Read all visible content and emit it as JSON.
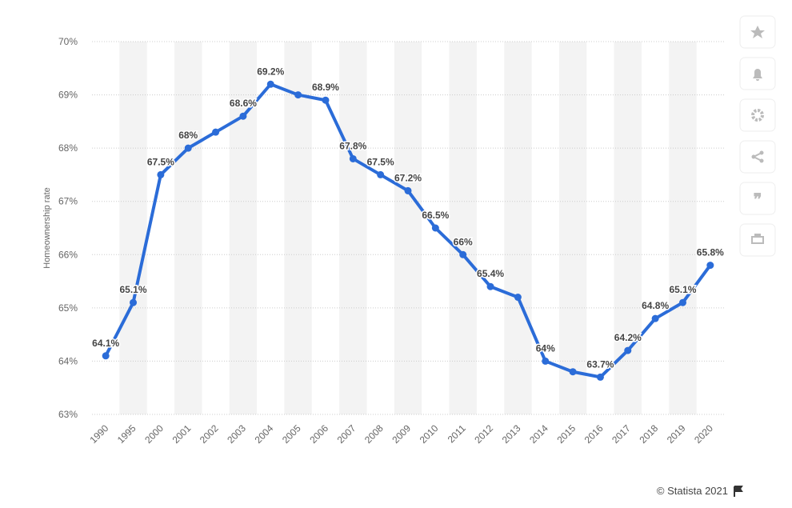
{
  "chart_data": {
    "type": "line",
    "y_label": "Homeownership rate",
    "categories": [
      "1990",
      "1995",
      "2000",
      "2001",
      "2002",
      "2003",
      "2004",
      "2005",
      "2006",
      "2007",
      "2008",
      "2009",
      "2010",
      "2011",
      "2012",
      "2013",
      "2014",
      "2015",
      "2016",
      "2017",
      "2018",
      "2019",
      "2020"
    ],
    "values": [
      64.1,
      65.1,
      67.5,
      68,
      68.3,
      68.6,
      69.2,
      69,
      68.9,
      67.8,
      67.5,
      67.2,
      66.5,
      66,
      65.4,
      65.2,
      64,
      63.8,
      63.7,
      64.2,
      64.8,
      65.1,
      65.8
    ],
    "value_labels": [
      "64.1%",
      "65.1%",
      "67.5%",
      "68%",
      null,
      "68.6%",
      "69.2%",
      null,
      "68.9%",
      "67.8%",
      "67.5%",
      "67.2%",
      "66.5%",
      "66%",
      "65.4%",
      null,
      "64%",
      null,
      "63.7%",
      "64.2%",
      "64.8%",
      "65.1%",
      "65.8%"
    ],
    "color": "#2b6cd8",
    "ylim": [
      63,
      70
    ],
    "yticks": [
      {
        "value": 63,
        "label": "63%"
      },
      {
        "value": 64,
        "label": "64%"
      },
      {
        "value": 65,
        "label": "65%"
      },
      {
        "value": 66,
        "label": "66%"
      },
      {
        "value": 67,
        "label": "67%"
      },
      {
        "value": 68,
        "label": "68%"
      },
      {
        "value": 69,
        "label": "69%"
      },
      {
        "value": 70,
        "label": "70%"
      }
    ],
    "grid": true,
    "source": "© Statista 2021"
  }
}
